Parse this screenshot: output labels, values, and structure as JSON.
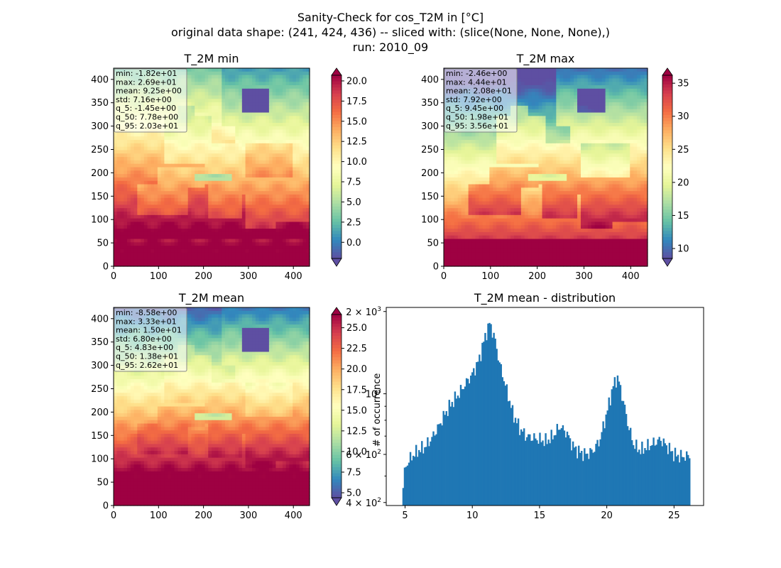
{
  "figure": {
    "title_lines": [
      "Sanity-Check for cos_T2M in [°C]",
      "original data shape: (241, 424, 436) -- sliced with: (slice(None, None, None),)",
      "run: 2010_09"
    ]
  },
  "chart_data": [
    {
      "type": "heatmap",
      "title": "T_2M min",
      "xlim": [
        0,
        436
      ],
      "ylim": [
        0,
        424
      ],
      "x_ticks": [
        "0",
        "100",
        "200",
        "300",
        "400"
      ],
      "y_ticks": [
        "0",
        "50",
        "100",
        "150",
        "200",
        "250",
        "300",
        "350",
        "400"
      ],
      "colorbar": {
        "range": [
          -2.0,
          20.7
        ],
        "ticks": [
          "0.0",
          "2.5",
          "5.0",
          "7.5",
          "10.0",
          "12.5",
          "15.0",
          "17.5",
          "20.0"
        ],
        "tick_values": [
          0,
          2.5,
          5,
          7.5,
          10,
          12.5,
          15,
          17.5,
          20
        ],
        "extend": "both",
        "cmap": "Spectral_r"
      },
      "stats": [
        "min: -1.82e+01",
        "max: 2.69e+01",
        "mean: 9.25e+00",
        "std: 7.16e+00",
        "q_5: -1.45e+00",
        "q_50: 7.78e+00",
        "q_95: 2.03e+01"
      ],
      "field": {
        "base": 14.0,
        "lat_grad": 11.0,
        "land_offset": -2.0,
        "highlands_cold": true
      }
    },
    {
      "type": "heatmap",
      "title": "T_2M max",
      "xlim": [
        0,
        436
      ],
      "ylim": [
        0,
        424
      ],
      "x_ticks": [
        "0",
        "100",
        "200",
        "300",
        "400"
      ],
      "y_ticks": [
        "0",
        "50",
        "100",
        "150",
        "200",
        "250",
        "300",
        "350",
        "400"
      ],
      "colorbar": {
        "range": [
          8.5,
          36.2
        ],
        "ticks": [
          "10",
          "15",
          "20",
          "25",
          "30",
          "35"
        ],
        "tick_values": [
          10,
          15,
          20,
          25,
          30,
          35
        ],
        "extend": "both",
        "cmap": "Spectral_r"
      },
      "stats": [
        "min: -2.46e+00",
        "max: 4.44e+01",
        "mean: 2.08e+01",
        "std: 7.92e+00",
        "q_5: 9.45e+00",
        "q_50: 1.98e+01",
        "q_95: 3.56e+01"
      ],
      "field": {
        "base": 22.0,
        "lat_grad": 16.0,
        "land_offset": 4.0,
        "highlands_cold": true
      }
    },
    {
      "type": "heatmap",
      "title": "T_2M mean",
      "xlim": [
        0,
        436
      ],
      "ylim": [
        0,
        424
      ],
      "x_ticks": [
        "0",
        "100",
        "200",
        "300",
        "400"
      ],
      "y_ticks": [
        "0",
        "50",
        "100",
        "150",
        "200",
        "250",
        "300",
        "350",
        "400"
      ],
      "colorbar": {
        "range": [
          4.4,
          26.6
        ],
        "ticks": [
          "5.0",
          "7.5",
          "10.0",
          "12.5",
          "15.0",
          "17.5",
          "20.0",
          "22.5",
          "25.0"
        ],
        "tick_values": [
          5,
          7.5,
          10,
          12.5,
          15,
          17.5,
          20,
          22.5,
          25
        ],
        "extend": "both",
        "cmap": "Spectral_r"
      },
      "stats": [
        "min: -8.58e+00",
        "max: 3.33e+01",
        "mean: 1.50e+01",
        "std: 6.80e+00",
        "q_5: 4.83e+00",
        "q_50: 1.38e+01",
        "q_95: 2.62e+01"
      ],
      "field": {
        "base": 18.0,
        "lat_grad": 13.0,
        "land_offset": 1.0,
        "highlands_cold": true
      }
    },
    {
      "type": "bar",
      "title": "T_2M mean - distribution",
      "ylabel": "# of occurrence",
      "yscale": "log",
      "xlim": [
        3.6,
        27.2
      ],
      "ylim": [
        390,
        2070
      ],
      "x_ticks": [
        5,
        10,
        15,
        20,
        25
      ],
      "y_ticks": [
        {
          "value": 400,
          "base": "4",
          "exp": "2"
        },
        {
          "value": 600,
          "base": "6",
          "exp": "2"
        },
        {
          "value": 1000,
          "base": "",
          "exp": "3"
        },
        {
          "value": 2000,
          "base": "2",
          "exp": "3"
        }
      ],
      "color": "#1f77b4",
      "bin_range": [
        4.8,
        26.2
      ],
      "n_bins": 200,
      "profile": [
        [
          4.8,
          420
        ],
        [
          5.0,
          540
        ],
        [
          5.5,
          590
        ],
        [
          6.0,
          620
        ],
        [
          6.5,
          640
        ],
        [
          7.0,
          690
        ],
        [
          7.5,
          760
        ],
        [
          8.0,
          850
        ],
        [
          8.5,
          930
        ],
        [
          9.0,
          1000
        ],
        [
          9.5,
          1090
        ],
        [
          10.0,
          1180
        ],
        [
          10.5,
          1330
        ],
        [
          11.0,
          1650
        ],
        [
          11.3,
          1820
        ],
        [
          11.7,
          1560
        ],
        [
          12.0,
          1300
        ],
        [
          12.5,
          1050
        ],
        [
          13.0,
          850
        ],
        [
          13.5,
          750
        ],
        [
          14.0,
          700
        ],
        [
          14.5,
          690
        ],
        [
          15.0,
          680
        ],
        [
          15.5,
          670
        ],
        [
          16.0,
          700
        ],
        [
          16.5,
          760
        ],
        [
          17.0,
          720
        ],
        [
          17.5,
          640
        ],
        [
          18.0,
          610
        ],
        [
          18.5,
          600
        ],
        [
          19.0,
          620
        ],
        [
          19.5,
          680
        ],
        [
          20.0,
          850
        ],
        [
          20.5,
          1080
        ],
        [
          20.8,
          1150
        ],
        [
          21.2,
          950
        ],
        [
          21.6,
          760
        ],
        [
          22.0,
          650
        ],
        [
          22.5,
          620
        ],
        [
          23.0,
          640
        ],
        [
          23.5,
          660
        ],
        [
          24.0,
          680
        ],
        [
          24.5,
          640
        ],
        [
          25.0,
          600
        ],
        [
          25.5,
          590
        ],
        [
          26.0,
          590
        ],
        [
          26.2,
          600
        ]
      ]
    }
  ]
}
